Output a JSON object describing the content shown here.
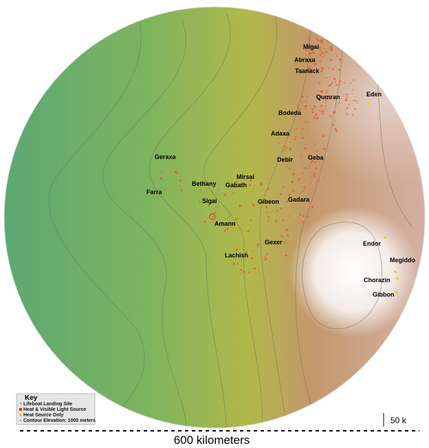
{
  "places": [
    "Migai",
    "Abraxa",
    "Taanack",
    "Qumran",
    "Eden",
    "Bodeda",
    "Adaxa",
    "Debir",
    "Geba",
    "Geraxa",
    "Mirsai",
    "Bethany",
    "Gabath",
    "Farra",
    "Sigai",
    "Gibeon",
    "Gadara",
    "Amann",
    "Gexer",
    "Lachish",
    "Endor",
    "Megiddo",
    "Chorazin",
    "Gibbon"
  ],
  "key": {
    "title": "Key",
    "items": [
      "Lifeboat Landing Site",
      "Heat & Visible Light Source",
      "Heat Source Only",
      "Contour Elevation: 1000 meters"
    ]
  },
  "scale": {
    "small": "50 k",
    "large": "600 kilometers"
  }
}
